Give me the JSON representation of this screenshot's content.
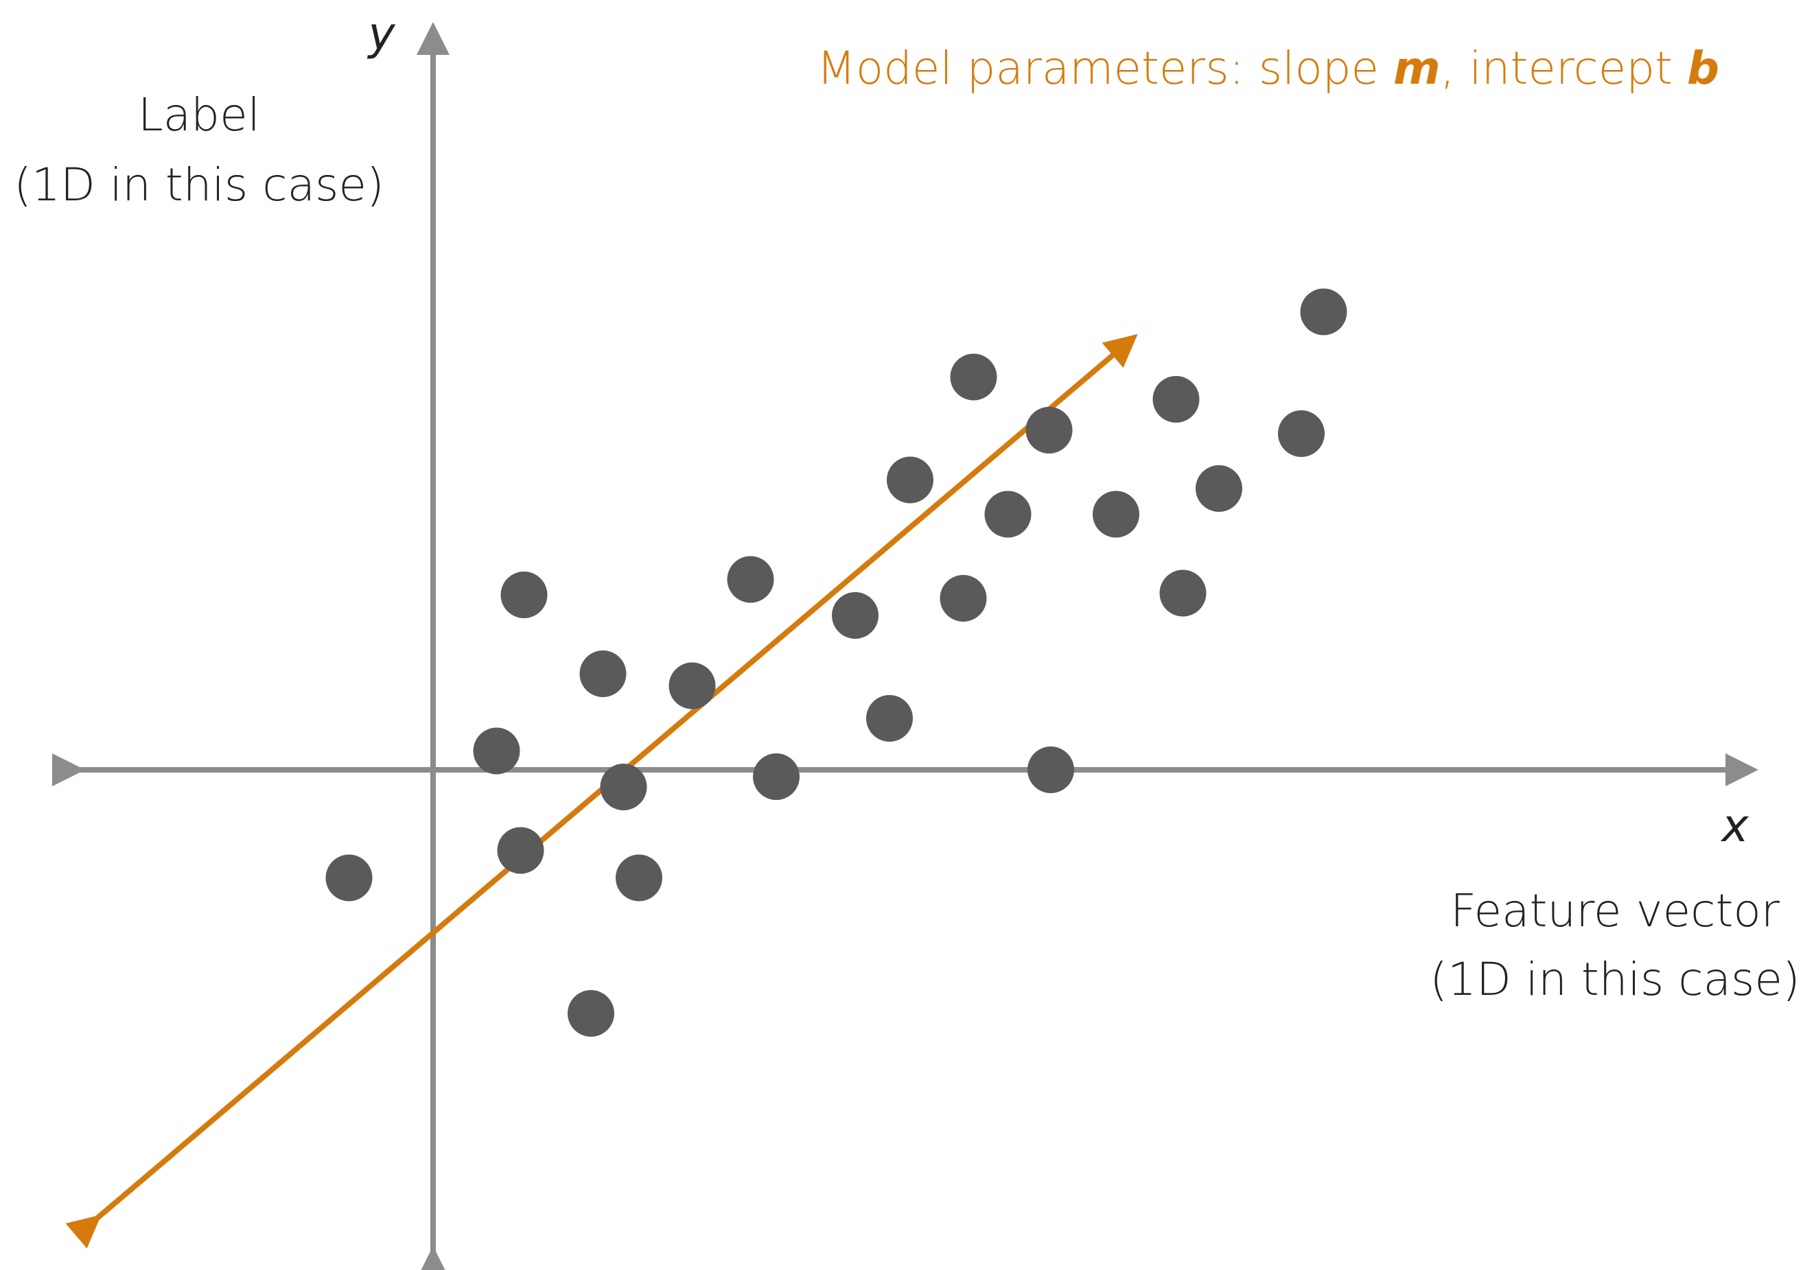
{
  "colors": {
    "axis": "#8c8c8c",
    "point": "#5a5a5a",
    "accent": "#d57b0e",
    "text": "#222222"
  },
  "labels": {
    "y_axis_letter": "y",
    "x_axis_letter": "x",
    "y_title_line1": "Label",
    "y_title_line2": "(1D in this case)",
    "x_title_line1": "Feature vector",
    "x_title_line2": "(1D in this case)",
    "model_prefix": "Model parameters: slope ",
    "model_m": "m",
    "model_mid": ", intercept ",
    "model_b": "b"
  },
  "chart_data": {
    "type": "scatter",
    "points": [
      [
        -0.49,
        -0.63
      ],
      [
        0.37,
        0.11
      ],
      [
        0.53,
        1.02
      ],
      [
        0.51,
        -0.47
      ],
      [
        0.99,
        0.56
      ],
      [
        1.11,
        -0.1
      ],
      [
        1.2,
        -0.63
      ],
      [
        0.92,
        -1.42
      ],
      [
        1.51,
        0.49
      ],
      [
        1.85,
        1.11
      ],
      [
        2.0,
        -0.04
      ],
      [
        2.46,
        0.9
      ],
      [
        2.66,
        0.3
      ],
      [
        2.78,
        1.69
      ],
      [
        3.09,
        1.0
      ],
      [
        3.15,
        2.29
      ],
      [
        3.35,
        1.49
      ],
      [
        3.59,
        1.98
      ],
      [
        3.6,
        0.0
      ],
      [
        3.98,
        1.49
      ],
      [
        4.33,
        2.16
      ],
      [
        4.37,
        1.03
      ],
      [
        4.58,
        1.64
      ],
      [
        5.06,
        1.96
      ],
      [
        5.19,
        2.67
      ]
    ],
    "fit_line": {
      "slope": 0.85,
      "intercept": -0.95
    },
    "xlim": [
      -2.1,
      7.6
    ],
    "ylim": [
      -2.81,
      4.28
    ]
  }
}
